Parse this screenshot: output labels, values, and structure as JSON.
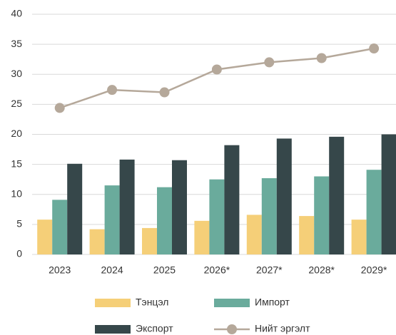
{
  "chart_data": {
    "type": "bar",
    "categories": [
      "2023",
      "2024",
      "2025",
      "2026*",
      "2027*",
      "2028*",
      "2029*"
    ],
    "series": [
      {
        "name": "Тэнцэл",
        "color": "#f5cf78",
        "values": [
          5.8,
          4.2,
          4.4,
          5.6,
          6.6,
          6.4,
          5.8
        ]
      },
      {
        "name": "Импорт",
        "color": "#6aab9c",
        "values": [
          9.1,
          11.5,
          11.2,
          12.5,
          12.7,
          13.0,
          14.1
        ]
      },
      {
        "name": "Экспорт",
        "color": "#36474a",
        "values": [
          15.1,
          15.8,
          15.7,
          18.2,
          19.3,
          19.6,
          20.0
        ]
      },
      {
        "name": "Нийт эргэлт",
        "type": "line",
        "color": "#b5a89a",
        "values": [
          24.4,
          27.4,
          27.0,
          30.8,
          32.0,
          32.7,
          34.3
        ]
      }
    ],
    "ylim": [
      0,
      40
    ],
    "yticks": [
      0,
      5,
      10,
      15,
      20,
      25,
      30,
      35,
      40
    ],
    "grid": true,
    "legend": "bottom"
  }
}
